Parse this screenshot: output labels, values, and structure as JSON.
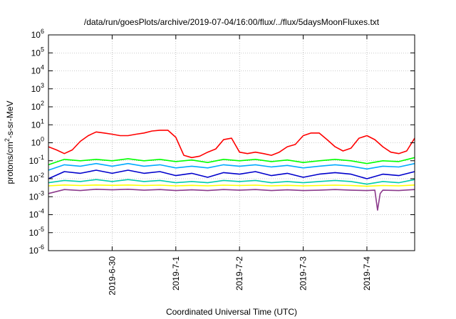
{
  "chart_data": {
    "type": "line",
    "title": "/data/run/goesPlots/archive/2019-07-04/16:00/flux/../flux/5daysMoonFluxes.txt",
    "xlabel": "Coordinated Universal Time (UTC)",
    "ylabel": {
      "prefix": "protons/cm",
      "superscript": "2",
      "suffix": "-s-sr-MeV"
    },
    "y_scale": "log",
    "ylim": [
      1e-06,
      1000000
    ],
    "xlim": [
      "2019-06-29 00:00",
      "2019-07-04 18:00"
    ],
    "grid": true,
    "y_ticks": [
      {
        "value": 1e-06,
        "base": "10",
        "exp": "-6"
      },
      {
        "value": 1e-05,
        "base": "10",
        "exp": "-5"
      },
      {
        "value": 0.0001,
        "base": "10",
        "exp": "-4"
      },
      {
        "value": 0.001,
        "base": "10",
        "exp": "-3"
      },
      {
        "value": 0.01,
        "base": "10",
        "exp": "-2"
      },
      {
        "value": 0.1,
        "base": "10",
        "exp": "-1"
      },
      {
        "value": 1,
        "base": "10",
        "exp": "0"
      },
      {
        "value": 10,
        "base": "10",
        "exp": "1"
      },
      {
        "value": 100,
        "base": "10",
        "exp": "2"
      },
      {
        "value": 1000,
        "base": "10",
        "exp": "3"
      },
      {
        "value": 10000,
        "base": "10",
        "exp": "4"
      },
      {
        "value": 100000,
        "base": "10",
        "exp": "5"
      },
      {
        "value": 1000000,
        "base": "10",
        "exp": "6"
      }
    ],
    "x_ticks": [
      {
        "value": "2019-06-30 00:00",
        "label": "2019-6-30"
      },
      {
        "value": "2019-07-01 00:00",
        "label": "2019-7-1"
      },
      {
        "value": "2019-07-02 00:00",
        "label": "2019-7-2"
      },
      {
        "value": "2019-07-03 00:00",
        "label": "2019-7-3"
      },
      {
        "value": "2019-07-04 00:00",
        "label": "2019-7-4"
      }
    ],
    "series": [
      {
        "color": "#ff0000",
        "x": [
          "2019-06-29 00:00",
          "2019-06-29 03:00",
          "2019-06-29 06:00",
          "2019-06-29 09:00",
          "2019-06-29 12:00",
          "2019-06-29 15:00",
          "2019-06-29 18:00",
          "2019-06-29 21:00",
          "2019-06-30 00:00",
          "2019-06-30 03:00",
          "2019-06-30 06:00",
          "2019-06-30 09:00",
          "2019-06-30 12:00",
          "2019-06-30 15:00",
          "2019-06-30 18:00",
          "2019-06-30 21:00",
          "2019-07-01 00:00",
          "2019-07-01 03:00",
          "2019-07-01 06:00",
          "2019-07-01 09:00",
          "2019-07-01 12:00",
          "2019-07-01 15:00",
          "2019-07-01 18:00",
          "2019-07-01 21:00",
          "2019-07-02 00:00",
          "2019-07-02 03:00",
          "2019-07-02 06:00",
          "2019-07-02 09:00",
          "2019-07-02 12:00",
          "2019-07-02 15:00",
          "2019-07-02 18:00",
          "2019-07-02 21:00",
          "2019-07-03 00:00",
          "2019-07-03 03:00",
          "2019-07-03 06:00",
          "2019-07-03 09:00",
          "2019-07-03 12:00",
          "2019-07-03 15:00",
          "2019-07-03 18:00",
          "2019-07-03 21:00",
          "2019-07-04 00:00",
          "2019-07-04 03:00",
          "2019-07-04 06:00",
          "2019-07-04 09:00",
          "2019-07-04 12:00",
          "2019-07-04 15:00",
          "2019-07-04 18:00"
        ],
        "y": [
          0.6,
          0.4,
          0.25,
          0.4,
          1.2,
          2.5,
          4,
          3.5,
          3,
          2.5,
          2.5,
          3,
          3.5,
          4.5,
          5,
          5,
          2,
          0.2,
          0.15,
          0.18,
          0.3,
          0.45,
          1.5,
          1.8,
          0.3,
          0.25,
          0.3,
          0.25,
          0.2,
          0.3,
          0.6,
          0.8,
          2.5,
          3.5,
          3.5,
          1.5,
          0.6,
          0.35,
          0.5,
          1.8,
          2.5,
          1.5,
          0.6,
          0.3,
          0.25,
          0.35,
          1.8
        ]
      },
      {
        "color": "#00ff00",
        "x": [
          "2019-06-29 00:00",
          "2019-06-29 06:00",
          "2019-06-29 12:00",
          "2019-06-29 18:00",
          "2019-06-30 00:00",
          "2019-06-30 06:00",
          "2019-06-30 12:00",
          "2019-06-30 18:00",
          "2019-07-01 00:00",
          "2019-07-01 06:00",
          "2019-07-01 12:00",
          "2019-07-01 18:00",
          "2019-07-02 00:00",
          "2019-07-02 06:00",
          "2019-07-02 12:00",
          "2019-07-02 18:00",
          "2019-07-03 00:00",
          "2019-07-03 06:00",
          "2019-07-03 12:00",
          "2019-07-03 18:00",
          "2019-07-04 00:00",
          "2019-07-04 06:00",
          "2019-07-04 12:00",
          "2019-07-04 18:00"
        ],
        "y": [
          0.06,
          0.12,
          0.1,
          0.12,
          0.1,
          0.13,
          0.1,
          0.12,
          0.09,
          0.11,
          0.08,
          0.12,
          0.1,
          0.12,
          0.09,
          0.11,
          0.08,
          0.1,
          0.12,
          0.1,
          0.07,
          0.1,
          0.09,
          0.15
        ]
      },
      {
        "color": "#00aaff",
        "x": [
          "2019-06-29 00:00",
          "2019-06-29 06:00",
          "2019-06-29 12:00",
          "2019-06-29 18:00",
          "2019-06-30 00:00",
          "2019-06-30 06:00",
          "2019-06-30 12:00",
          "2019-06-30 18:00",
          "2019-07-01 00:00",
          "2019-07-01 06:00",
          "2019-07-01 12:00",
          "2019-07-01 18:00",
          "2019-07-02 00:00",
          "2019-07-02 06:00",
          "2019-07-02 12:00",
          "2019-07-02 18:00",
          "2019-07-03 00:00",
          "2019-07-03 06:00",
          "2019-07-03 12:00",
          "2019-07-03 18:00",
          "2019-07-04 00:00",
          "2019-07-04 06:00",
          "2019-07-04 12:00",
          "2019-07-04 18:00"
        ],
        "y": [
          0.03,
          0.06,
          0.05,
          0.07,
          0.05,
          0.07,
          0.05,
          0.06,
          0.04,
          0.05,
          0.04,
          0.06,
          0.05,
          0.06,
          0.045,
          0.055,
          0.04,
          0.05,
          0.06,
          0.05,
          0.035,
          0.05,
          0.045,
          0.07
        ]
      },
      {
        "color": "#0000cc",
        "x": [
          "2019-06-29 00:00",
          "2019-06-29 06:00",
          "2019-06-29 12:00",
          "2019-06-29 18:00",
          "2019-06-30 00:00",
          "2019-06-30 06:00",
          "2019-06-30 12:00",
          "2019-06-30 18:00",
          "2019-07-01 00:00",
          "2019-07-01 06:00",
          "2019-07-01 12:00",
          "2019-07-01 18:00",
          "2019-07-02 00:00",
          "2019-07-02 06:00",
          "2019-07-02 12:00",
          "2019-07-02 18:00",
          "2019-07-03 00:00",
          "2019-07-03 06:00",
          "2019-07-03 12:00",
          "2019-07-03 18:00",
          "2019-07-04 00:00",
          "2019-07-04 06:00",
          "2019-07-04 12:00",
          "2019-07-04 18:00"
        ],
        "y": [
          0.01,
          0.025,
          0.02,
          0.03,
          0.02,
          0.03,
          0.02,
          0.025,
          0.015,
          0.02,
          0.012,
          0.022,
          0.018,
          0.025,
          0.015,
          0.02,
          0.012,
          0.018,
          0.022,
          0.018,
          0.01,
          0.018,
          0.015,
          0.025
        ]
      },
      {
        "color": "#00ccaa",
        "x": [
          "2019-06-29 00:00",
          "2019-06-29 06:00",
          "2019-06-29 12:00",
          "2019-06-29 18:00",
          "2019-06-30 00:00",
          "2019-06-30 06:00",
          "2019-06-30 12:00",
          "2019-06-30 18:00",
          "2019-07-01 00:00",
          "2019-07-01 06:00",
          "2019-07-01 12:00",
          "2019-07-01 18:00",
          "2019-07-02 00:00",
          "2019-07-02 06:00",
          "2019-07-02 12:00",
          "2019-07-02 18:00",
          "2019-07-03 00:00",
          "2019-07-03 06:00",
          "2019-07-03 12:00",
          "2019-07-03 18:00",
          "2019-07-04 00:00",
          "2019-07-04 06:00",
          "2019-07-04 12:00",
          "2019-07-04 18:00"
        ],
        "y": [
          0.006,
          0.008,
          0.007,
          0.009,
          0.007,
          0.009,
          0.007,
          0.008,
          0.006,
          0.007,
          0.006,
          0.008,
          0.007,
          0.008,
          0.006,
          0.007,
          0.006,
          0.007,
          0.008,
          0.007,
          0.005,
          0.007,
          0.006,
          0.009
        ]
      },
      {
        "color": "#ffff00",
        "x": [
          "2019-06-29 00:00",
          "2019-06-29 06:00",
          "2019-06-29 12:00",
          "2019-06-29 18:00",
          "2019-06-30 00:00",
          "2019-06-30 06:00",
          "2019-06-30 12:00",
          "2019-06-30 18:00",
          "2019-07-01 00:00",
          "2019-07-01 06:00",
          "2019-07-01 12:00",
          "2019-07-01 18:00",
          "2019-07-02 00:00",
          "2019-07-02 06:00",
          "2019-07-02 12:00",
          "2019-07-02 18:00",
          "2019-07-03 00:00",
          "2019-07-03 06:00",
          "2019-07-03 12:00",
          "2019-07-03 18:00",
          "2019-07-04 00:00",
          "2019-07-04 06:00",
          "2019-07-04 12:00",
          "2019-07-04 18:00"
        ],
        "y": [
          0.004,
          0.0045,
          0.0042,
          0.0045,
          0.0043,
          0.0045,
          0.0042,
          0.0044,
          0.004,
          0.0043,
          0.004,
          0.0044,
          0.0042,
          0.0044,
          0.004,
          0.0043,
          0.004,
          0.0042,
          0.0044,
          0.0042,
          0.0038,
          0.0042,
          0.004,
          0.0045
        ]
      },
      {
        "color": "#8b3a8b",
        "x": [
          "2019-06-29 00:00",
          "2019-06-29 06:00",
          "2019-06-29 12:00",
          "2019-06-29 18:00",
          "2019-06-30 00:00",
          "2019-06-30 06:00",
          "2019-06-30 12:00",
          "2019-06-30 18:00",
          "2019-07-01 00:00",
          "2019-07-01 06:00",
          "2019-07-01 12:00",
          "2019-07-01 18:00",
          "2019-07-02 00:00",
          "2019-07-02 06:00",
          "2019-07-02 12:00",
          "2019-07-02 18:00",
          "2019-07-03 00:00",
          "2019-07-03 06:00",
          "2019-07-03 12:00",
          "2019-07-03 18:00",
          "2019-07-04 00:00",
          "2019-07-04 03:00",
          "2019-07-04 04:00",
          "2019-07-04 05:00",
          "2019-07-04 06:00",
          "2019-07-04 12:00",
          "2019-07-04 18:00"
        ],
        "y": [
          0.0015,
          0.0025,
          0.0022,
          0.0026,
          0.0024,
          0.0026,
          0.0023,
          0.0025,
          0.0022,
          0.0024,
          0.0022,
          0.0025,
          0.0023,
          0.0025,
          0.0022,
          0.0024,
          0.0022,
          0.0023,
          0.0025,
          0.0023,
          0.0022,
          0.0023,
          0.00018,
          0.0015,
          0.0023,
          0.0022,
          0.0025
        ]
      }
    ]
  }
}
